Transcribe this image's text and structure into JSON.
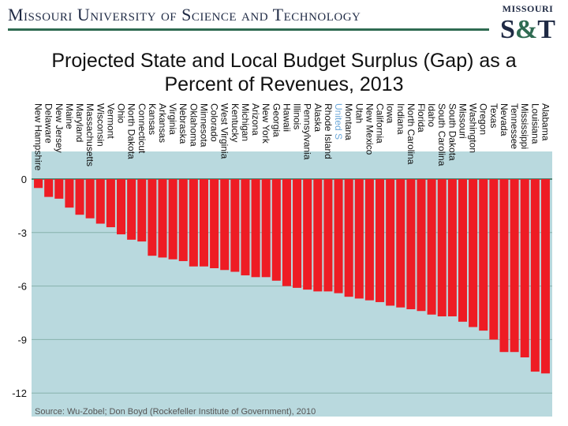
{
  "header": {
    "university": "Missouri University of Science and Technology",
    "logo_top": "MISSOURI",
    "logo_main_left": "S",
    "logo_amp": "&",
    "logo_main_right": "T"
  },
  "colors": {
    "bar": "#ee1c24",
    "plot_bg": "#b9d9de",
    "grid": "#2f6b52"
  },
  "chart_data": {
    "type": "bar",
    "title": "Projected State and Local Budget Surplus (Gap) as a Percent of Revenues, 2013",
    "categories": [
      "New Hampshire",
      "Delaware",
      "New Jersey",
      "Maine",
      "Maryland",
      "Massachusetts",
      "Wisconsin",
      "Vermont",
      "Ohio",
      "North Dakota",
      "Connecticut",
      "Kansas",
      "Arkansas",
      "Virginia",
      "Nebraska",
      "Oklahoma",
      "Minnesota",
      "Colorado",
      "West Virginia",
      "Kentucky",
      "Michigan",
      "Arizona",
      "New York",
      "Georgia",
      "Hawaii",
      "Illinois",
      "Pennsylvania",
      "Alaska",
      "Rhode Island",
      "United S",
      "Montana",
      "Utah",
      "New Mexico",
      "California",
      "Iowa",
      "Indiana",
      "North Carolina",
      "Florida",
      "Idaho",
      "South Carolina",
      "South Dakota",
      "Missouri",
      "Washington",
      "Oregon",
      "Texas",
      "Nevada",
      "Tennessee",
      "Mississippi",
      "Louisiana",
      "Alabama"
    ],
    "values": [
      -0.5,
      -1.0,
      -1.1,
      -1.6,
      -2.0,
      -2.2,
      -2.5,
      -2.7,
      -3.1,
      -3.4,
      -3.5,
      -4.3,
      -4.4,
      -4.5,
      -4.6,
      -4.9,
      -4.9,
      -5.0,
      -5.1,
      -5.2,
      -5.4,
      -5.5,
      -5.5,
      -5.7,
      -6.0,
      -6.1,
      -6.2,
      -6.3,
      -6.3,
      -6.4,
      -6.6,
      -6.7,
      -6.8,
      -6.9,
      -7.1,
      -7.2,
      -7.3,
      -7.4,
      -7.6,
      -7.7,
      -7.7,
      -8.0,
      -8.3,
      -8.5,
      -9.0,
      -9.7,
      -9.7,
      -10.0,
      -10.8,
      -10.9
    ],
    "yticks": [
      0,
      -3,
      -6,
      -9,
      -12
    ],
    "ylim": [
      -12,
      0
    ]
  },
  "source": "Source: Wu-Zobel; Don Boyd (Rockefeller Institute of Government), 2010"
}
